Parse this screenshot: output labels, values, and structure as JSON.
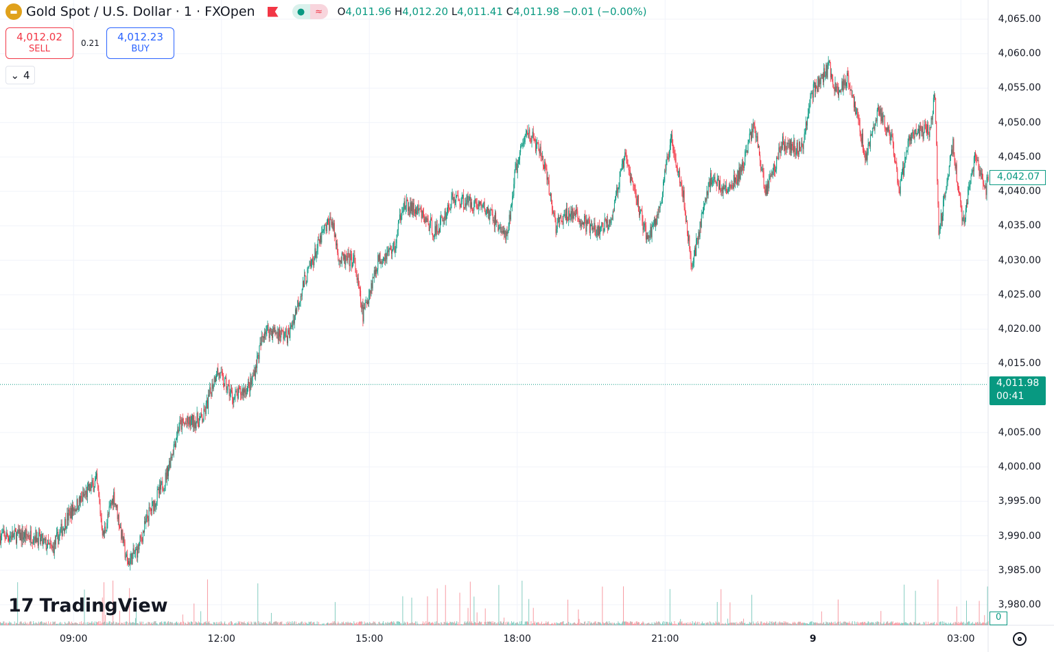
{
  "header": {
    "symbol": "Gold Spot / U.S. Dollar · 1 · FXOpen",
    "open_label": "O",
    "open": "4,011.96",
    "high_label": "H",
    "high": "4,012.20",
    "low_label": "L",
    "low": "4,011.41",
    "close_label": "C",
    "close": "4,011.98",
    "change": "−0.01 (−0.00%)",
    "market_status": "≈"
  },
  "trade": {
    "sell_price": "4,012.02",
    "sell_label": "SELL",
    "spread": "0.21",
    "buy_price": "4,012.23",
    "buy_label": "BUY"
  },
  "indicators": {
    "collapsed_count": "4"
  },
  "logo": "TradingView",
  "price_tags": {
    "high_tag": "4,042.07",
    "last_price": "4,011.98",
    "countdown": "00:41",
    "volume": "0"
  },
  "colors": {
    "up": "#089981",
    "down": "#f23645",
    "accent": "#2962ff"
  },
  "chart_data": {
    "type": "candlestick",
    "y_ticks": [
      "4,065.00",
      "4,060.00",
      "4,055.00",
      "4,050.00",
      "4,045.00",
      "4,040.00",
      "4,035.00",
      "4,030.00",
      "4,025.00",
      "4,020.00",
      "4,015.00",
      "4,005.00",
      "4,000.00",
      "3,995.00",
      "3,990.00",
      "3,985.00",
      "3,980.00"
    ],
    "y_tick_values": [
      4065,
      4060,
      4055,
      4050,
      4045,
      4040,
      4035,
      4030,
      4025,
      4020,
      4015,
      4005,
      4000,
      3995,
      3990,
      3985,
      3980
    ],
    "x_ticks": [
      "09:00",
      "12:00",
      "15:00",
      "18:00",
      "21:00",
      "9",
      "03:00"
    ],
    "x_tick_minutes": [
      98,
      295,
      492,
      689,
      886,
      1083,
      1280
    ],
    "ylim": [
      3977,
      4067
    ],
    "last_price": 4011.98,
    "price_path_minute_price": [
      [
        0,
        3990
      ],
      [
        46,
        3990
      ],
      [
        69,
        3988
      ],
      [
        91,
        3993
      ],
      [
        128,
        3998
      ],
      [
        137,
        3990
      ],
      [
        151,
        3996
      ],
      [
        169,
        3986
      ],
      [
        183,
        3988
      ],
      [
        197,
        3993
      ],
      [
        219,
        3998
      ],
      [
        238,
        4006
      ],
      [
        270,
        4007
      ],
      [
        288,
        4014
      ],
      [
        311,
        4010
      ],
      [
        334,
        4012
      ],
      [
        352,
        4020
      ],
      [
        384,
        4019
      ],
      [
        402,
        4026
      ],
      [
        430,
        4034
      ],
      [
        441,
        4036
      ],
      [
        452,
        4030
      ],
      [
        471,
        4030
      ],
      [
        483,
        4022
      ],
      [
        503,
        4030
      ],
      [
        526,
        4032
      ],
      [
        535,
        4038
      ],
      [
        558,
        4037
      ],
      [
        580,
        4034
      ],
      [
        603,
        4039
      ],
      [
        640,
        4038
      ],
      [
        658,
        4036
      ],
      [
        675,
        4033
      ],
      [
        686,
        4043
      ],
      [
        702,
        4049
      ],
      [
        722,
        4045
      ],
      [
        740,
        4035
      ],
      [
        759,
        4037
      ],
      [
        795,
        4034
      ],
      [
        813,
        4036
      ],
      [
        832,
        4045
      ],
      [
        845,
        4040
      ],
      [
        862,
        4033
      ],
      [
        877,
        4037
      ],
      [
        894,
        4048
      ],
      [
        909,
        4040
      ],
      [
        921,
        4029
      ],
      [
        932,
        4035
      ],
      [
        946,
        4042
      ],
      [
        969,
        4040
      ],
      [
        987,
        4043
      ],
      [
        1004,
        4050
      ],
      [
        1019,
        4040
      ],
      [
        1042,
        4047
      ],
      [
        1068,
        4046
      ],
      [
        1079,
        4054
      ],
      [
        1104,
        4058
      ],
      [
        1115,
        4054
      ],
      [
        1129,
        4057
      ],
      [
        1153,
        4045
      ],
      [
        1170,
        4052
      ],
      [
        1188,
        4047
      ],
      [
        1197,
        4040
      ],
      [
        1211,
        4048
      ],
      [
        1238,
        4049
      ],
      [
        1245,
        4054
      ],
      [
        1250,
        4034
      ],
      [
        1269,
        4047
      ],
      [
        1282,
        4035
      ],
      [
        1298,
        4045
      ],
      [
        1312,
        4040
      ],
      [
        1316,
        4042
      ]
    ]
  }
}
